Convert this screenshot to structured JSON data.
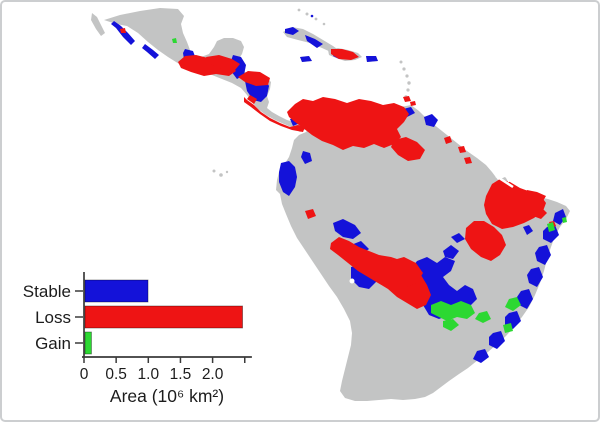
{
  "figure": {
    "kind": "map-with-inset-bar-chart",
    "region_shown": "Mexico, Central America, the Caribbean and South America"
  },
  "colors": {
    "background": "#ffffff",
    "land": "#c3c4c4",
    "sea": "#ffffff",
    "stable": "#1412d9",
    "loss": "#ee1414",
    "gain": "#2cd832",
    "axis": "#3a3a3a",
    "text": "#1c1c1c"
  },
  "chart_data": {
    "type": "bar",
    "orientation": "horizontal",
    "title": "",
    "xlabel": "Area (10⁶ km²)",
    "ylabel": "",
    "categories": [
      "Stable",
      "Loss",
      "Gain"
    ],
    "values": [
      0.98,
      2.45,
      0.1
    ],
    "series_colors": [
      "#1412d9",
      "#ee1414",
      "#2cd832"
    ],
    "xlim": [
      0,
      2.58
    ],
    "ticks": [
      {
        "v": 0,
        "label": "0"
      },
      {
        "v": 0.5,
        "label": "0.5"
      },
      {
        "v": 1.0,
        "label": "1.0"
      },
      {
        "v": 1.5,
        "label": "1.5"
      },
      {
        "v": 2.0,
        "label": "2.0"
      },
      {
        "v": 2.5,
        "label": ""
      }
    ],
    "grid": false,
    "legend_position": "none"
  }
}
